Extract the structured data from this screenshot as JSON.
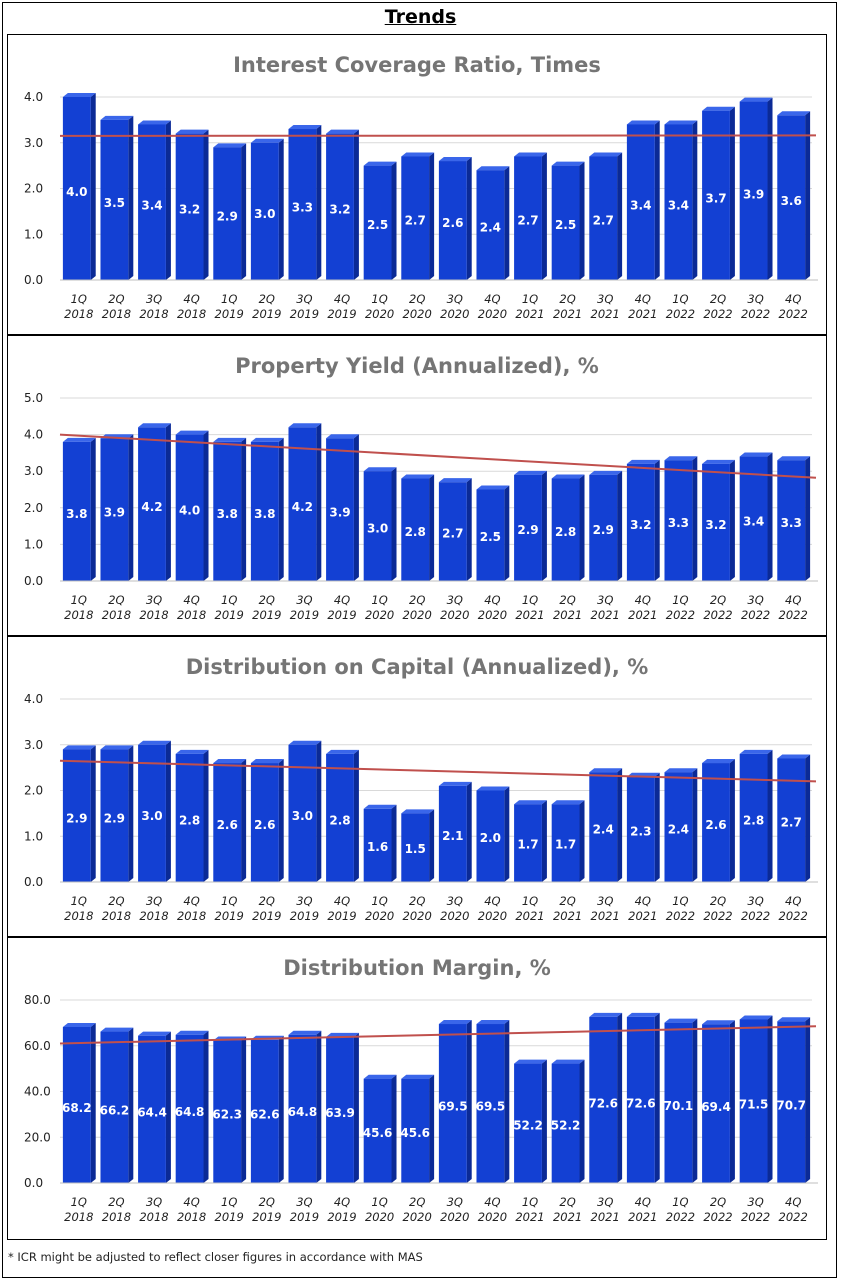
{
  "page": {
    "title": "Trends",
    "footnote": "* ICR might be adjusted to reflect closer figures in accordance with MAS"
  },
  "colors": {
    "bar": "#1340d3",
    "bar_side": "#0b2a96",
    "bar_top": "#3a66ea",
    "trend": "#c0504d",
    "grid": "#d9d9d9"
  },
  "chart_data": [
    {
      "type": "bar",
      "title": "Interest Coverage Ratio, Times",
      "categories": [
        "1Q 2018",
        "2Q 2018",
        "3Q 2018",
        "4Q 2018",
        "1Q 2019",
        "2Q 2019",
        "3Q 2019",
        "4Q 2019",
        "1Q 2020",
        "2Q 2020",
        "3Q 2020",
        "4Q 2020",
        "1Q 2021",
        "2Q 2021",
        "3Q 2021",
        "4Q 2021",
        "1Q 2022",
        "2Q 2022",
        "3Q 2022",
        "4Q 2022"
      ],
      "values": [
        4.0,
        3.5,
        3.4,
        3.2,
        2.9,
        3.0,
        3.3,
        3.2,
        2.5,
        2.7,
        2.6,
        2.4,
        2.7,
        2.5,
        2.7,
        3.4,
        3.4,
        3.7,
        3.9,
        3.6
      ],
      "labels": [
        "4.0",
        "3.5",
        "3.4",
        "3.2",
        "2.9",
        "3.0",
        "3.3",
        "3.2",
        "2.5",
        "2.7",
        "2.6",
        "2.4",
        "2.7",
        "2.5",
        "2.7",
        "3.4",
        "3.4",
        "3.7",
        "3.9",
        "3.6"
      ],
      "yticks": [
        "0.0",
        "1.0",
        "2.0",
        "3.0",
        "4.0"
      ],
      "ylim": [
        0,
        4.0
      ],
      "trendline": [
        3.15,
        3.16
      ]
    },
    {
      "type": "bar",
      "title": "Property Yield (Annualized), %",
      "categories": [
        "1Q 2018",
        "2Q 2018",
        "3Q 2018",
        "4Q 2018",
        "1Q 2019",
        "2Q 2019",
        "3Q 2019",
        "4Q 2019",
        "1Q 2020",
        "2Q 2020",
        "3Q 2020",
        "4Q 2020",
        "1Q 2021",
        "2Q 2021",
        "3Q 2021",
        "4Q 2021",
        "1Q 2022",
        "2Q 2022",
        "3Q 2022",
        "4Q 2022"
      ],
      "values": [
        3.8,
        3.9,
        4.2,
        4.0,
        3.8,
        3.8,
        4.2,
        3.9,
        3.0,
        2.8,
        2.7,
        2.5,
        2.9,
        2.8,
        2.9,
        3.2,
        3.3,
        3.2,
        3.4,
        3.3
      ],
      "labels": [
        "3.8",
        "3.9",
        "4.2",
        "4.0",
        "3.8",
        "3.8",
        "4.2",
        "3.9",
        "3.0",
        "2.8",
        "2.7",
        "2.5",
        "2.9",
        "2.8",
        "2.9",
        "3.2",
        "3.3",
        "3.2",
        "3.4",
        "3.3"
      ],
      "yticks": [
        "0.0",
        "1.0",
        "2.0",
        "3.0",
        "4.0",
        "5.0"
      ],
      "ylim": [
        0,
        5.0
      ],
      "trendline": [
        4.0,
        2.82
      ]
    },
    {
      "type": "bar",
      "title": "Distribution on Capital (Annualized), %",
      "categories": [
        "1Q 2018",
        "2Q 2018",
        "3Q 2018",
        "4Q 2018",
        "1Q 2019",
        "2Q 2019",
        "3Q 2019",
        "4Q 2019",
        "1Q 2020",
        "2Q 2020",
        "3Q 2020",
        "4Q 2020",
        "1Q 2021",
        "2Q 2021",
        "3Q 2021",
        "4Q 2021",
        "1Q 2022",
        "2Q 2022",
        "3Q 2022",
        "4Q 2022"
      ],
      "values": [
        2.9,
        2.9,
        3.0,
        2.8,
        2.6,
        2.6,
        3.0,
        2.8,
        1.6,
        1.5,
        2.1,
        2.0,
        1.7,
        1.7,
        2.4,
        2.3,
        2.4,
        2.6,
        2.8,
        2.7
      ],
      "labels": [
        "2.9",
        "2.9",
        "3.0",
        "2.8",
        "2.6",
        "2.6",
        "3.0",
        "2.8",
        "1.6",
        "1.5",
        "2.1",
        "2.0",
        "1.7",
        "1.7",
        "2.4",
        "2.3",
        "2.4",
        "2.6",
        "2.8",
        "2.7"
      ],
      "yticks": [
        "0.0",
        "1.0",
        "2.0",
        "3.0",
        "4.0"
      ],
      "ylim": [
        0,
        4.0
      ],
      "trendline": [
        2.65,
        2.2
      ]
    },
    {
      "type": "bar",
      "title": "Distribution Margin, %",
      "categories": [
        "1Q 2018",
        "2Q 2018",
        "3Q 2018",
        "4Q 2018",
        "1Q 2019",
        "2Q 2019",
        "3Q 2019",
        "4Q 2019",
        "1Q 2020",
        "2Q 2020",
        "3Q 2020",
        "4Q 2020",
        "1Q 2021",
        "2Q 2021",
        "3Q 2021",
        "4Q 2021",
        "1Q 2022",
        "2Q 2022",
        "3Q 2022",
        "4Q 2022"
      ],
      "values": [
        68.2,
        66.2,
        64.4,
        64.8,
        62.3,
        62.6,
        64.8,
        63.9,
        45.6,
        45.6,
        69.5,
        69.5,
        52.2,
        52.2,
        72.6,
        72.6,
        70.1,
        69.4,
        71.5,
        70.7
      ],
      "labels": [
        "68.2",
        "66.2",
        "64.4",
        "64.8",
        "62.3",
        "62.6",
        "64.8",
        "63.9",
        "45.6",
        "45.6",
        "69.5",
        "69.5",
        "52.2",
        "52.2",
        "72.6",
        "72.6",
        "70.1",
        "69.4",
        "71.5",
        "70.7"
      ],
      "yticks": [
        "0.0",
        "20.0",
        "40.0",
        "60.0",
        "80.0"
      ],
      "ylim": [
        0,
        80.0
      ],
      "trendline": [
        61.0,
        68.5
      ]
    }
  ]
}
